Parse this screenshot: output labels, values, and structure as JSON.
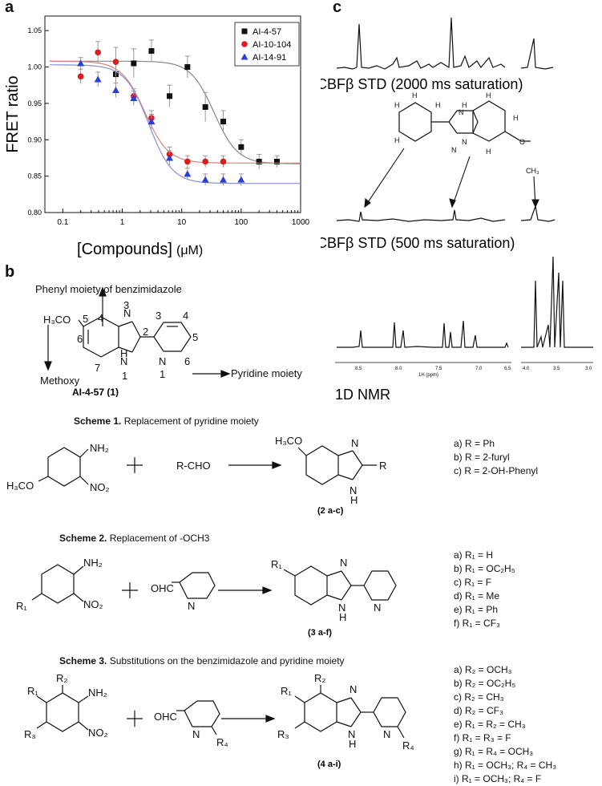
{
  "panels": {
    "a": "a",
    "b": "b",
    "c": "c"
  },
  "chart_data": {
    "type": "scatter",
    "xscale": "log",
    "xlim": [
      0.05,
      1000
    ],
    "ylim": [
      0.8,
      1.07
    ],
    "xticks": [
      "0.1",
      "1",
      "10",
      "100",
      "1000"
    ],
    "yticks": [
      "0.80",
      "0.85",
      "0.90",
      "0.95",
      "1.00",
      "1.05"
    ],
    "ylabel": "FRET ratio",
    "xlabel": "[Compounds]",
    "xunit": "(μM)",
    "legend_position": "top-right",
    "series": [
      {
        "name": "AI-4-57",
        "color": "#111111",
        "marker": "square",
        "x": [
          0.78,
          1.56,
          3.1,
          6.25,
          12.5,
          25,
          50,
          100,
          200,
          400
        ],
        "y": [
          0.99,
          1.005,
          1.022,
          0.96,
          1.0,
          0.945,
          0.925,
          0.89,
          0.87,
          0.87
        ],
        "err": [
          0.015,
          0.02,
          0.015,
          0.015,
          0.015,
          0.02,
          0.015,
          0.01,
          0.01,
          0.008
        ],
        "fit": {
          "top": 1.008,
          "bottom": 0.867,
          "ic50": 35
        }
      },
      {
        "name": "AI-10-104",
        "color": "#dd1c1c",
        "marker": "circle",
        "x": [
          0.2,
          0.39,
          0.78,
          1.56,
          3.1,
          6.25,
          12.5,
          25,
          50
        ],
        "y": [
          0.987,
          1.02,
          1.007,
          0.96,
          0.93,
          0.88,
          0.87,
          0.87,
          0.87
        ],
        "err": [
          0.01,
          0.015,
          0.02,
          0.01,
          0.01,
          0.01,
          0.008,
          0.008,
          0.008
        ],
        "fit": {
          "top": 1.008,
          "bottom": 0.868,
          "ic50": 2.4
        }
      },
      {
        "name": "AI-14-91",
        "color": "#2a3fd6",
        "marker": "triangle",
        "x": [
          0.2,
          0.39,
          0.78,
          1.56,
          3.1,
          6.25,
          12.5,
          25,
          50,
          100
        ],
        "y": [
          1.005,
          0.983,
          0.968,
          0.957,
          0.925,
          0.875,
          0.853,
          0.845,
          0.845,
          0.845
        ],
        "err": [
          0.008,
          0.01,
          0.01,
          0.01,
          0.01,
          0.01,
          0.008,
          0.008,
          0.008,
          0.008
        ],
        "fit": {
          "top": 1.003,
          "bottom": 0.84,
          "ic50": 2.8
        }
      }
    ]
  },
  "panel_c": {
    "std2000": "CBFβ STD  (2000 ms saturation)",
    "std500": "CBFβ STD (500 ms saturation)",
    "nmr1d": "1D NMR",
    "ppm_ticks_left": [
      "8.5",
      "8.0",
      "7.5",
      "7.0",
      "6.5"
    ],
    "ppm_unit": "1H (ppm)",
    "ppm_ticks_right": [
      "4.0",
      "3.5",
      "3.0"
    ]
  },
  "panel_b": {
    "phenyl_label": "Phenyl moiety of benzimidazole",
    "methoxy_label": "Methoxy",
    "pyridine_label": "Pyridine moiety",
    "compound_label": "AI-4-57 (1)",
    "scheme1": {
      "title_bold": "Scheme 1.",
      "title_rest": " Replacement of pyridine moiety",
      "reagent": "R-CHO",
      "product_label": "(2 a-c)",
      "list": [
        "a) R = Ph",
        "b) R = 2-furyl",
        "c) R = 2-OH-Phenyl"
      ]
    },
    "scheme2": {
      "title_bold": "Scheme 2.",
      "title_rest": "  Replacement of -OCH3",
      "product_label": "(3 a-f)",
      "list": [
        "a) R₁  = H",
        "b) R₁  = OC₂H₅",
        "c) R₁  = F",
        "d) R₁ = Me",
        "e) R₁ = Ph",
        "f) R₁ = CF₃"
      ]
    },
    "scheme3": {
      "title_bold": "Scheme 3.",
      "title_rest": " Substitutions on the benzimidazole and pyridine moiety",
      "product_label": "(4 a-i)",
      "list": [
        "a) R₂ = OCH₃",
        "b) R₂ = OC₂H₅",
        "c) R₂ = CH₃",
        "d) R₂ = CF₃",
        "e) R₁ = R₂ = CH₃",
        "f) R₁ = R₃ = F",
        "g) R₁ = R₄ = OCH₃",
        "h) R₁ = OCH₃; R₄ = CH₃",
        "i)  R₁ = OCH₃; R₄ = F"
      ]
    }
  }
}
